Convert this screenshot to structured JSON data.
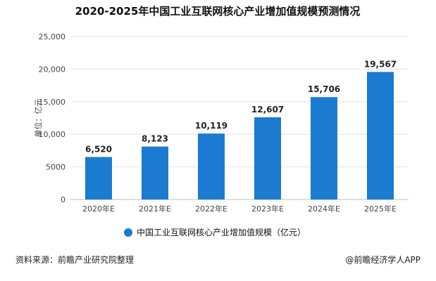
{
  "chart_data": {
    "type": "bar",
    "title": "2020-2025年中国工业互联网核心产业增加值规模预测情况",
    "ylabel": "单位：亿元",
    "categories": [
      "2020年E",
      "2021年E",
      "2022年E",
      "2023年E",
      "2024年E",
      "2025年E"
    ],
    "series": [
      {
        "name": "中国工业互联网核心产业增加值规模（亿元）",
        "values": [
          6520,
          8123,
          10119,
          12607,
          15706,
          19567
        ],
        "labels": [
          "6,520",
          "8,123",
          "10,119",
          "12,607",
          "15,706",
          "19,567"
        ],
        "color": "#1a7bd1"
      }
    ],
    "ylim": [
      0,
      25000
    ],
    "yticks": [
      0,
      5000,
      10000,
      15000,
      20000,
      25000
    ],
    "ytick_labels": [
      "0",
      "5000",
      "10,000",
      "15,000",
      "20,000",
      "25,000"
    ],
    "grid": true,
    "legend_position": "bottom"
  },
  "footer": {
    "source": "资料来源：前瞻产业研究院整理",
    "brand": "@前瞻经济学人APP"
  }
}
